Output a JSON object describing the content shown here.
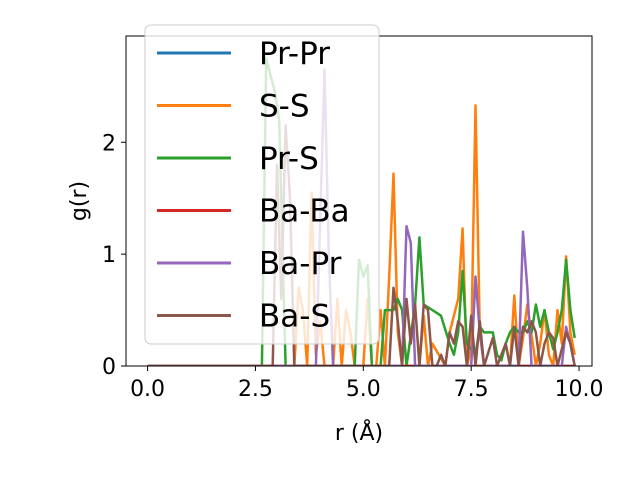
{
  "chart_data": {
    "type": "line",
    "xlabel": "r (Å)",
    "ylabel": "g(r)",
    "xlim": [
      -0.5,
      10.3
    ],
    "ylim": [
      0,
      2.95
    ],
    "xticks": [
      0.0,
      2.5,
      5.0,
      7.5,
      10.0
    ],
    "xtick_labels": [
      "0.0",
      "2.5",
      "5.0",
      "7.5",
      "10.0"
    ],
    "yticks": [
      0,
      1,
      2
    ],
    "ytick_labels": [
      "0",
      "1",
      "2"
    ],
    "legend_position": "top-left",
    "series": [
      {
        "name": "Pr-Pr",
        "color": "#1f77b4",
        "x": [
          0.0,
          9.9
        ],
        "y": [
          0,
          0
        ]
      },
      {
        "name": "S-S",
        "color": "#ff7f0e",
        "x": [
          0.0,
          3.4,
          3.5,
          3.6,
          3.7,
          3.8,
          3.9,
          4.0,
          4.1,
          4.3,
          4.4,
          4.5,
          4.6,
          4.7,
          4.8,
          5.0,
          5.1,
          5.2,
          5.3,
          5.4,
          5.5,
          5.6,
          5.7,
          5.8,
          5.9,
          6.3,
          6.4,
          6.5,
          6.6,
          6.9,
          7.0,
          7.2,
          7.3,
          7.4,
          7.5,
          7.6,
          7.7,
          7.8,
          8.4,
          8.5,
          8.6,
          8.7,
          8.8,
          9.0,
          9.1,
          9.2,
          9.3,
          9.4,
          9.5,
          9.6,
          9.7,
          9.8,
          9.9
        ],
        "y": [
          0,
          0,
          0.7,
          0.5,
          0,
          1.55,
          0.1,
          0.4,
          0,
          0,
          0.6,
          0,
          0.5,
          0.3,
          0,
          0,
          0.6,
          0,
          0,
          0.5,
          0,
          0.8,
          1.72,
          0.3,
          0,
          0,
          0.45,
          0,
          0.2,
          0,
          0.3,
          0.6,
          1.23,
          0,
          0.15,
          2.33,
          0.3,
          0,
          0,
          0.63,
          0,
          0.25,
          0.55,
          0,
          0.2,
          0.5,
          0.1,
          0,
          0.5,
          0.2,
          0.98,
          0.3,
          0.1
        ]
      },
      {
        "name": "Pr-S",
        "color": "#2ca02c",
        "x": [
          0.0,
          2.65,
          2.75,
          2.85,
          2.95,
          3.05,
          3.2,
          4.8,
          4.9,
          5.0,
          5.1,
          5.2,
          5.3,
          5.4,
          5.5,
          5.7,
          5.8,
          5.9,
          6.0,
          6.2,
          6.3,
          6.4,
          6.6,
          6.8,
          7.0,
          7.1,
          7.2,
          7.3,
          7.4,
          7.5,
          7.6,
          7.7,
          7.8,
          8.0,
          8.1,
          8.2,
          8.3,
          8.4,
          8.5,
          8.6,
          8.7,
          8.8,
          8.9,
          9.0,
          9.1,
          9.2,
          9.3,
          9.4,
          9.5,
          9.6,
          9.7,
          9.8,
          9.9
        ],
        "y": [
          0,
          0,
          2.75,
          2.6,
          2.45,
          2.2,
          0.0,
          0,
          0.95,
          0.8,
          0.9,
          0,
          0,
          0,
          0.5,
          0.5,
          0.6,
          0.5,
          0,
          0.55,
          1.15,
          0.55,
          0.5,
          0.45,
          0.2,
          0.1,
          0.3,
          0.85,
          0.2,
          0.15,
          0.1,
          0.35,
          0.3,
          0.3,
          0.1,
          0.05,
          0.2,
          0.3,
          0.35,
          0.3,
          0.3,
          0.4,
          0.3,
          0.55,
          0.35,
          0.5,
          0.3,
          0.15,
          0.3,
          0.5,
          0.95,
          0.5,
          0.25
        ]
      },
      {
        "name": "Ba-Ba",
        "color": "#d62728",
        "x": [
          0.0,
          9.9
        ],
        "y": [
          0,
          0
        ]
      },
      {
        "name": "Ba-Pr",
        "color": "#9467bd",
        "x": [
          0.0,
          3.9,
          4.0,
          4.1,
          4.2,
          4.3,
          5.9,
          6.0,
          6.1,
          6.2,
          7.5,
          7.6,
          7.7,
          7.8,
          8.6,
          8.7,
          8.8,
          8.9,
          9.6,
          9.7,
          9.8,
          9.9
        ],
        "y": [
          0,
          0,
          1.3,
          2.65,
          1.0,
          0,
          0,
          1.25,
          1.1,
          0,
          0,
          0.8,
          0.3,
          0,
          0,
          1.2,
          0.7,
          0,
          0,
          0.35,
          0.2,
          0
        ]
      },
      {
        "name": "Ba-S",
        "color": "#8c564b",
        "x": [
          0.0,
          2.9,
          3.0,
          3.1,
          3.2,
          3.3,
          3.4,
          5.6,
          5.7,
          5.8,
          5.9,
          6.0,
          6.1,
          6.2,
          6.3,
          6.4,
          6.5,
          6.6,
          6.7,
          6.8,
          6.9,
          7.0,
          7.1,
          7.2,
          7.3,
          7.4,
          7.5,
          7.6,
          7.7,
          7.8,
          8.0,
          8.1,
          8.2,
          8.3,
          8.4,
          8.5,
          8.6,
          8.7,
          8.8,
          8.9,
          9.0,
          9.1,
          9.2,
          9.3,
          9.4,
          9.5,
          9.6,
          9.7,
          9.8,
          9.9
        ],
        "y": [
          0,
          0,
          1.8,
          0.6,
          2.15,
          1.5,
          0,
          0,
          0.7,
          0.4,
          0,
          0.6,
          0.2,
          0.55,
          0,
          0.55,
          0.5,
          0,
          0,
          0.1,
          0,
          0.3,
          0.2,
          0.4,
          0.35,
          0,
          0.45,
          0,
          0.4,
          0,
          0.25,
          0,
          0.1,
          0.2,
          0,
          0.35,
          0,
          0.35,
          0.3,
          0.4,
          0.3,
          0,
          0.2,
          0.3,
          0.25,
          0,
          0.15,
          0.3,
          0.2,
          0
        ]
      }
    ]
  }
}
